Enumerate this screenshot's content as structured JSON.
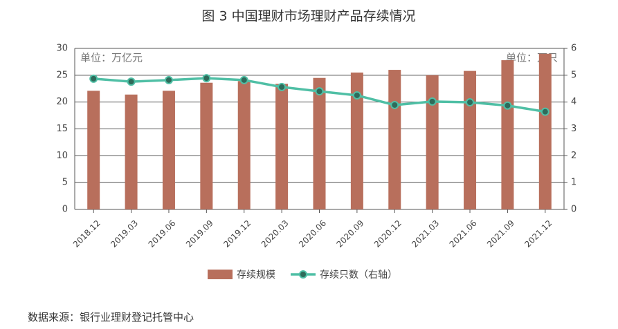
{
  "chart_data": {
    "type": "bar",
    "title": "图 3 中国理财市场理财产品存续情况",
    "y_unit_label": "单位：万亿元",
    "y2_unit_label": "单位：万只",
    "categories": [
      "2018.12",
      "2019.03",
      "2019.06",
      "2019.09",
      "2019.12",
      "2020.03",
      "2020.06",
      "2020.09",
      "2020.12",
      "2021.03",
      "2021.06",
      "2021.09",
      "2021.12"
    ],
    "series": [
      {
        "name": "存续规模",
        "color": "#b86f5c",
        "type": "bar",
        "values": [
          22.1,
          21.4,
          22.1,
          23.6,
          23.9,
          23.4,
          24.5,
          25.5,
          26.0,
          25.0,
          25.8,
          27.8,
          29.0
        ]
      },
      {
        "name": "存续只数（右轴）",
        "color": "#4fbfa5",
        "type": "line",
        "axis": "y2",
        "values": [
          4.87,
          4.76,
          4.82,
          4.89,
          4.82,
          4.56,
          4.4,
          4.25,
          3.89,
          4.02,
          3.99,
          3.87,
          3.64
        ]
      }
    ],
    "ylim": [
      0,
      30
    ],
    "yticks": [
      0,
      5,
      10,
      15,
      20,
      25,
      30
    ],
    "y2lim": [
      0,
      6
    ],
    "y2ticks": [
      0,
      1,
      2,
      3,
      4,
      5,
      6
    ],
    "grid": true,
    "legend": "bottom",
    "source": "数据来源：银行业理财登记托管中心"
  }
}
